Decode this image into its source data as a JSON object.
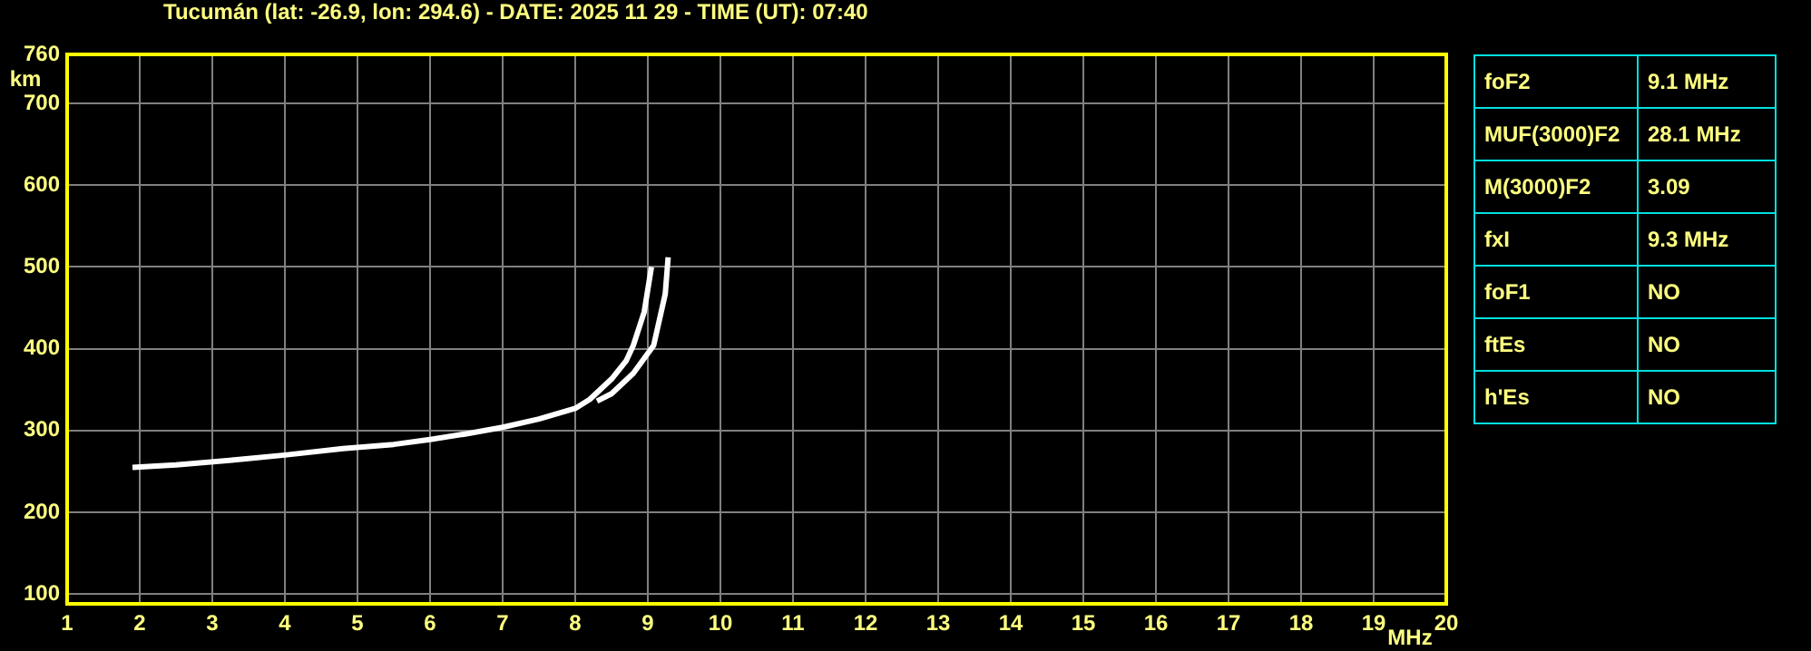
{
  "chart_data": [
    {
      "type": "line",
      "title": "Tucumán (lat: -26.9, lon: 294.6) - DATE: 2025 11 29 - TIME (UT): 07:40",
      "xlabel": "MHz",
      "ylabel": "km",
      "xlim": [
        1,
        20
      ],
      "xticks": [
        1,
        2,
        3,
        4,
        5,
        6,
        7,
        8,
        9,
        10,
        11,
        12,
        13,
        14,
        15,
        16,
        17,
        18,
        19,
        20
      ],
      "ylim": [
        88,
        760
      ],
      "yticks": [
        100,
        200,
        300,
        400,
        500,
        600,
        700,
        760
      ],
      "grid": true,
      "legend": false,
      "marker": "none",
      "line_style": "solid",
      "series": [
        {
          "color": "#ffffff",
          "x": [
            1.9,
            2.5,
            3.3,
            4,
            4.8,
            5.5,
            6,
            6.5,
            7,
            7.5,
            8,
            8.2,
            8.5,
            8.7,
            8.8,
            8.95,
            9.05
          ],
          "values": [
            255,
            258,
            264,
            270,
            278,
            283,
            289,
            296,
            304,
            314,
            327,
            338,
            363,
            385,
            404,
            445,
            500
          ]
        },
        {
          "color": "#ffffff",
          "x": [
            8.3,
            8.5,
            8.8,
            9.08,
            9.24,
            9.28
          ],
          "values": [
            336,
            345,
            370,
            404,
            467,
            512
          ]
        }
      ]
    },
    {
      "type": "other",
      "annotations": [
        "foF2",
        "9.1 MHz",
        "MUF(3000)F2",
        "28.1 MHz",
        "M(3000)F2",
        "3.09",
        "fxI",
        "9.3 MHz",
        "foF1",
        "NO",
        "ftEs",
        "NO",
        "h'Es",
        "NO"
      ]
    }
  ]
}
